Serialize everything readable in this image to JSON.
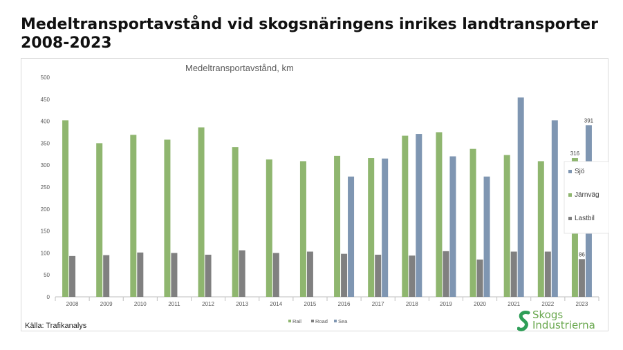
{
  "slide": {
    "title": "Medeltransportavstånd vid skogsnäringens inrikes landtransporter 2008-2023",
    "source": "Källa: Trafikanalys",
    "logo_line1": "Skogs",
    "logo_line2": "Industrierna"
  },
  "chart_data": {
    "type": "bar",
    "title": "Medeltransportavstånd, km",
    "categories": [
      "2008",
      "2009",
      "2010",
      "2011",
      "2012",
      "2013",
      "2014",
      "2015",
      "2016",
      "2017",
      "2018",
      "2019",
      "2020",
      "2021",
      "2022",
      "2023"
    ],
    "series": [
      {
        "name": "Rail",
        "color": "#8fb66f",
        "values": [
          402,
          350,
          369,
          358,
          386,
          341,
          313,
          309,
          321,
          316,
          367,
          375,
          337,
          323,
          309,
          316
        ]
      },
      {
        "name": "Road",
        "color": "#808080",
        "values": [
          93,
          95,
          101,
          100,
          96,
          106,
          100,
          103,
          98,
          96,
          94,
          104,
          85,
          103,
          103,
          86
        ]
      },
      {
        "name": "Sea",
        "color": "#7f96b2",
        "values": [
          null,
          null,
          null,
          null,
          null,
          null,
          null,
          null,
          274,
          315,
          371,
          320,
          274,
          454,
          402,
          391
        ]
      }
    ],
    "data_labels": [
      {
        "series": "Rail",
        "category": "2023",
        "text": "316"
      },
      {
        "series": "Road",
        "category": "2023",
        "text": "86"
      },
      {
        "series": "Sea",
        "category": "2023",
        "text": "391"
      }
    ],
    "yticks": [
      0,
      50,
      100,
      150,
      200,
      250,
      300,
      350,
      400,
      450,
      500
    ],
    "ylim": [
      0,
      500
    ],
    "grid": false,
    "bottom_legend": [
      "Rail",
      "Road",
      "Sea"
    ],
    "side_legend": [
      {
        "label": "Sjö",
        "color": "#7f96b2"
      },
      {
        "label": "Järnväg",
        "color": "#8fb66f"
      },
      {
        "label": "Lastbil",
        "color": "#808080"
      }
    ],
    "side_legend_position": "right"
  }
}
